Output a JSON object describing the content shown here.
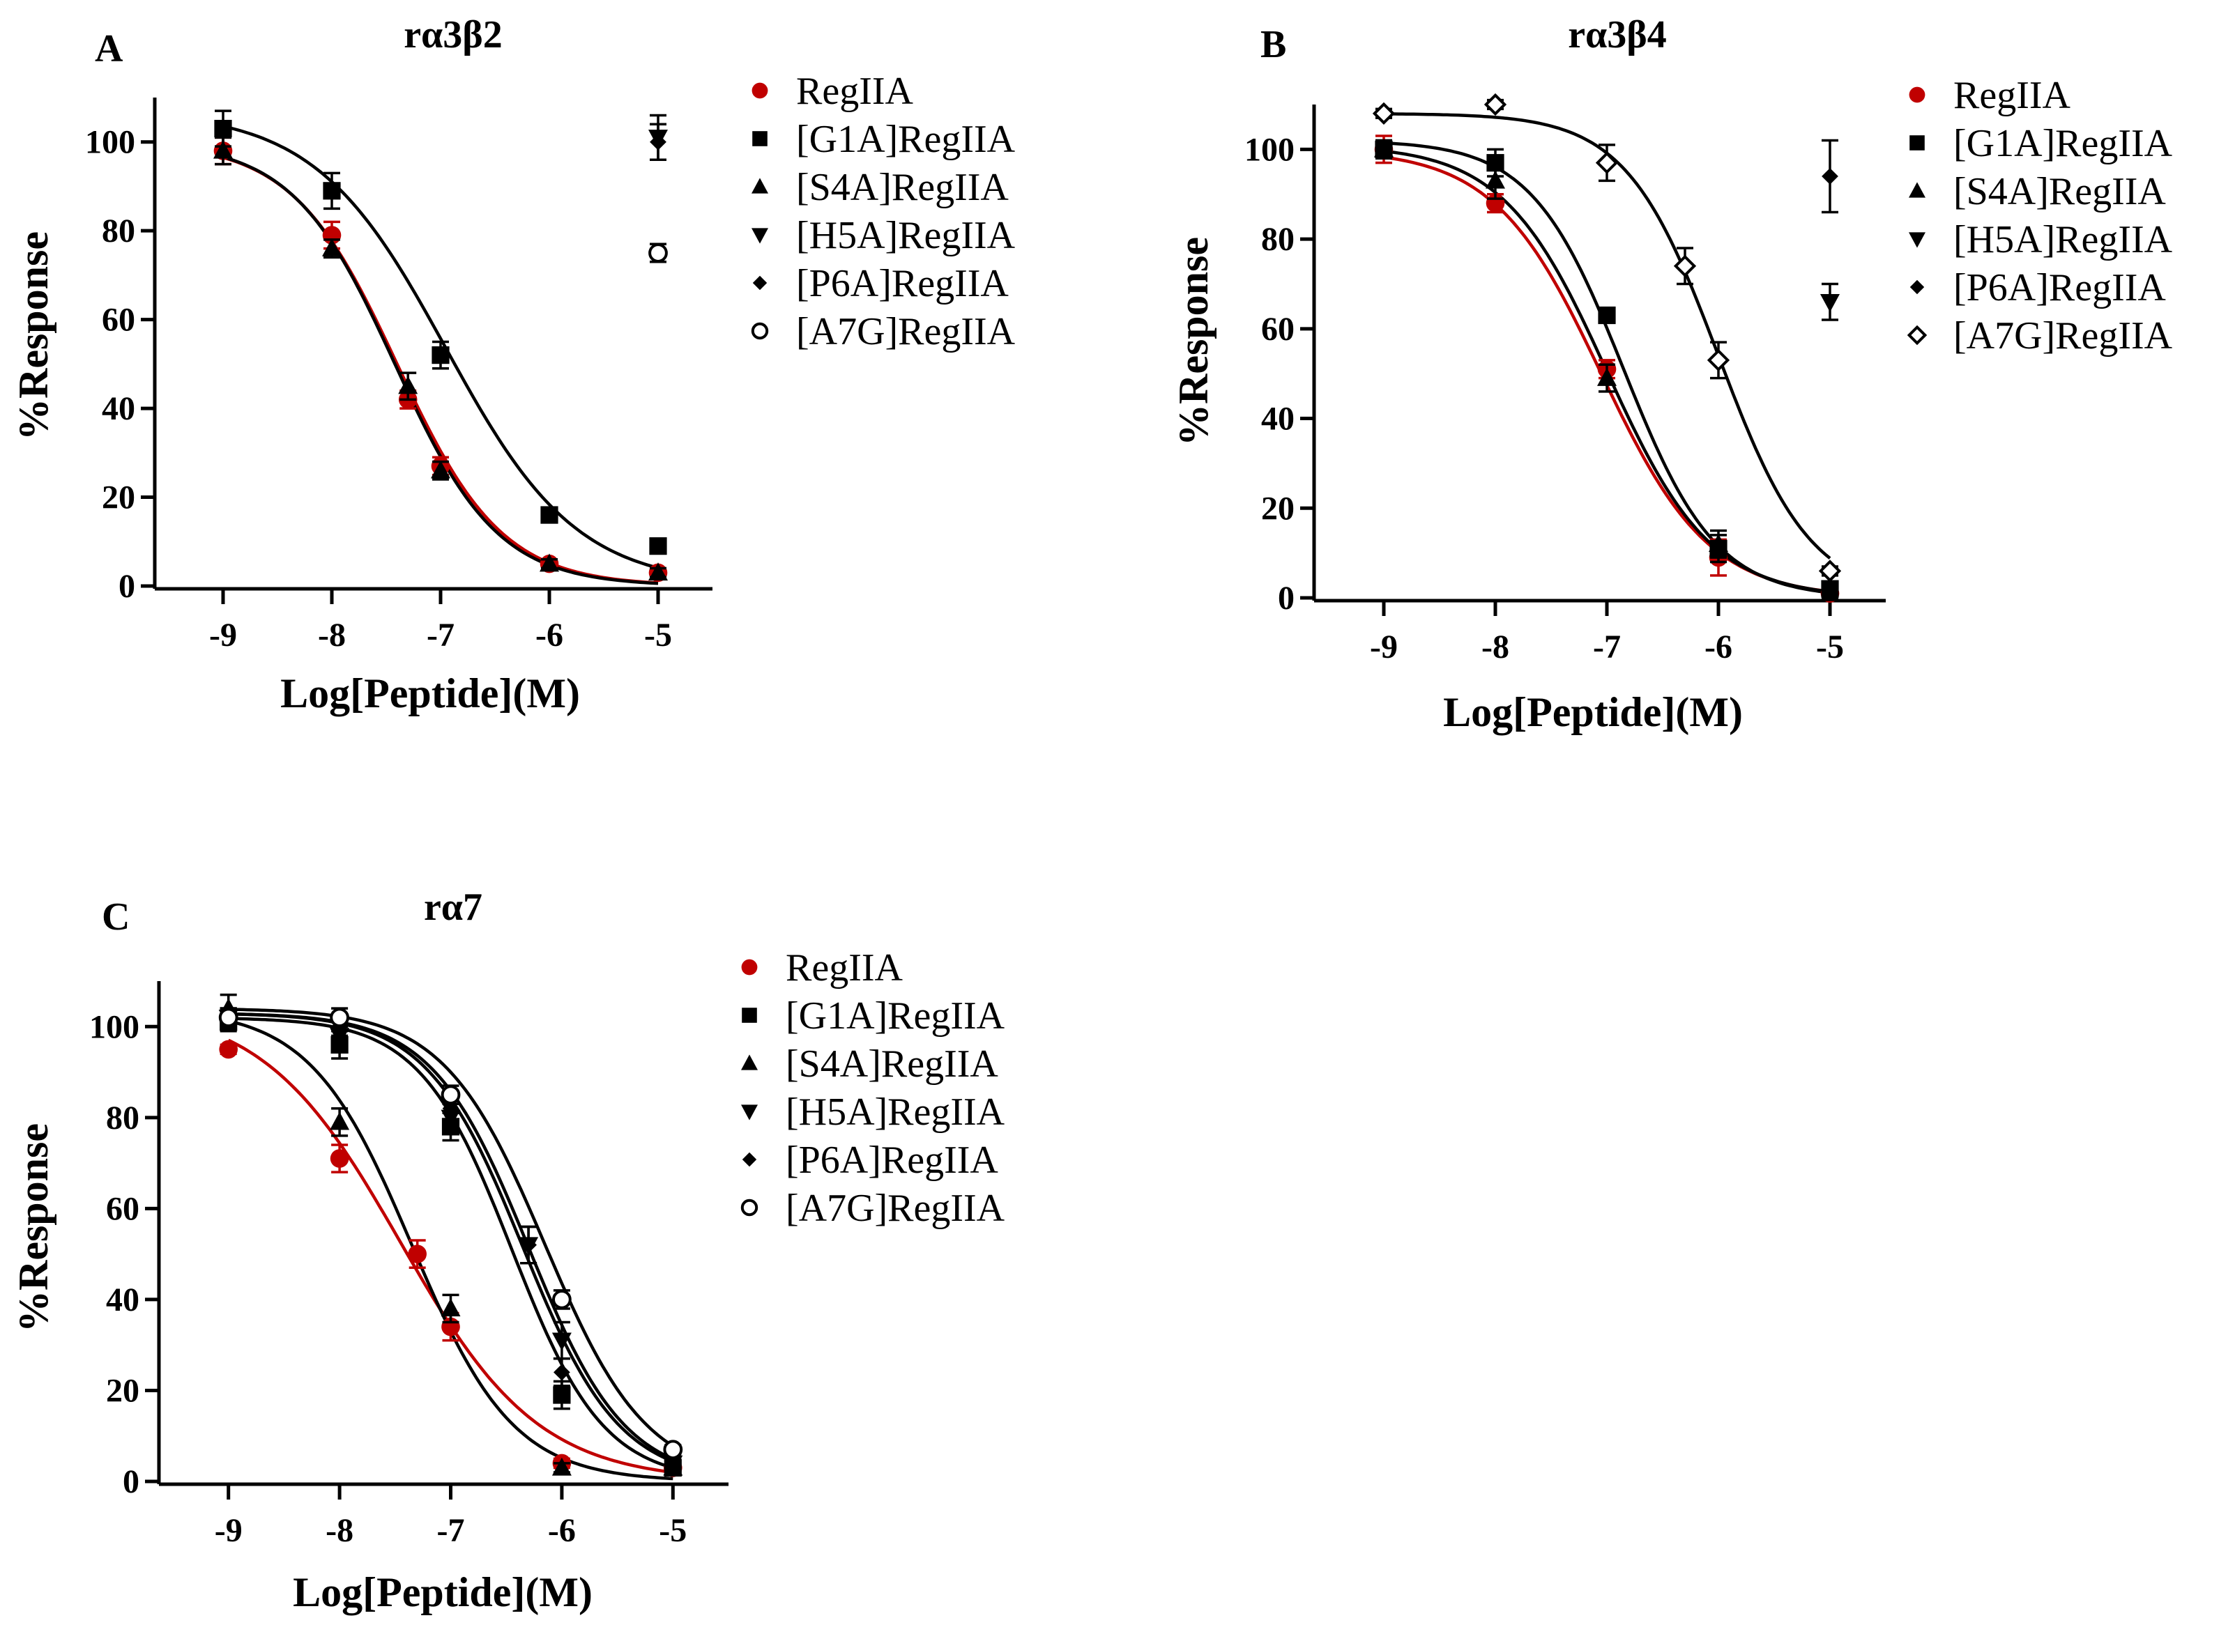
{
  "figure": {
    "colors": {
      "red": "#c00000",
      "black": "#000000"
    }
  },
  "chart_data": [
    {
      "panel": "A",
      "type": "scatter",
      "title": "rα3β2",
      "xlabel": "Log[Peptide](M)",
      "ylabel": "%Response",
      "xlim": [
        -9.5,
        -4.5
      ],
      "ylim": [
        0,
        110
      ],
      "xticks": [
        -9,
        -8,
        -7,
        -6,
        -5
      ],
      "yticks": [
        0,
        20,
        40,
        60,
        80,
        100
      ],
      "legend_position": "right",
      "series": [
        {
          "name": "RegIIA",
          "marker": "circle-filled",
          "color": "#c00000",
          "x": [
            -9,
            -8,
            -7.3,
            -7,
            -6,
            -5
          ],
          "y": [
            98,
            79,
            42,
            27,
            5,
            3
          ],
          "err": [
            3,
            3,
            2,
            2,
            1,
            1
          ],
          "fit": {
            "top": 100,
            "bottom": 0,
            "logIC50": -7.4,
            "hill": 0.9
          }
        },
        {
          "name": "[G1A]RegIIA",
          "marker": "square-filled",
          "color": "#000000",
          "x": [
            -9,
            -8,
            -7,
            -6,
            -5
          ],
          "y": [
            103,
            89,
            52,
            16,
            9
          ],
          "err": [
            4,
            4,
            3,
            1,
            1
          ],
          "fit": {
            "top": 107,
            "bottom": 0,
            "logIC50": -6.95,
            "hill": 0.72
          }
        },
        {
          "name": "[S4A]RegIIA",
          "marker": "triangle-up-filled",
          "color": "#000000",
          "x": [
            -9,
            -8,
            -7.3,
            -7,
            -6,
            -5
          ],
          "y": [
            98,
            76,
            45,
            26,
            5,
            3
          ],
          "err": [
            3,
            2,
            3,
            2,
            1,
            1
          ],
          "fit": {
            "top": 100,
            "bottom": 0,
            "logIC50": -7.42,
            "hill": 0.92
          }
        },
        {
          "name": "[H5A]RegIIA",
          "marker": "triangle-down-filled",
          "color": "#000000",
          "x": [
            -5
          ],
          "y": [
            101
          ],
          "err": [
            5
          ]
        },
        {
          "name": "[P6A]RegIIA",
          "marker": "diamond-filled",
          "color": "#000000",
          "x": [
            -5
          ],
          "y": [
            100
          ],
          "err": [
            4
          ]
        },
        {
          "name": "[A7G]RegIIA",
          "marker": "circle-open",
          "color": "#000000",
          "x": [
            -5
          ],
          "y": [
            75
          ],
          "err": [
            2
          ]
        }
      ]
    },
    {
      "panel": "B",
      "type": "scatter",
      "title": "rα3β4",
      "xlabel": "Log[Peptide](M)",
      "ylabel": "%Response",
      "xlim": [
        -9.5,
        -4.5
      ],
      "ylim": [
        0,
        110
      ],
      "xticks": [
        -9,
        -8,
        -7,
        -6,
        -5
      ],
      "yticks": [
        0,
        20,
        40,
        60,
        80,
        100
      ],
      "legend_position": "right",
      "series": [
        {
          "name": "RegIIA",
          "marker": "circle-filled",
          "color": "#c00000",
          "x": [
            -9,
            -8,
            -7,
            -6,
            -5
          ],
          "y": [
            100,
            88,
            51,
            9,
            1
          ],
          "err": [
            3,
            2,
            2,
            4,
            1
          ],
          "fit": {
            "top": 100,
            "bottom": 0,
            "logIC50": -7.05,
            "hill": 0.9
          }
        },
        {
          "name": "[G1A]RegIIA",
          "marker": "square-filled",
          "color": "#000000",
          "x": [
            -9,
            -8,
            -7,
            -6,
            -5
          ],
          "y": [
            100,
            97,
            63,
            11,
            2
          ],
          "err": [
            2,
            3,
            1,
            3,
            1
          ],
          "fit": {
            "top": 102,
            "bottom": 0,
            "logIC50": -6.85,
            "hill": 1.05
          }
        },
        {
          "name": "[S4A]RegIIA",
          "marker": "triangle-up-filled",
          "color": "#000000",
          "x": [
            -9,
            -8,
            -7,
            -6,
            -5
          ],
          "y": [
            100,
            93,
            49,
            12,
            1
          ],
          "err": [
            2,
            4,
            3,
            3,
            1
          ],
          "fit": {
            "top": 101,
            "bottom": 0,
            "logIC50": -7.0,
            "hill": 0.93
          }
        },
        {
          "name": "[H5A]RegIIA",
          "marker": "triangle-down-filled",
          "color": "#000000",
          "x": [
            -5
          ],
          "y": [
            66
          ],
          "err": [
            4
          ]
        },
        {
          "name": "[P6A]RegIIA",
          "marker": "diamond-filled",
          "color": "#000000",
          "x": [
            -5
          ],
          "y": [
            94
          ],
          "err": [
            8
          ]
        },
        {
          "name": "[A7G]RegIIA",
          "marker": "diamond-open",
          "color": "#000000",
          "x": [
            -9,
            -8,
            -7,
            -6.3,
            -6,
            -5
          ],
          "y": [
            108,
            110,
            97,
            74,
            53,
            6
          ],
          "err": [
            1,
            1,
            4,
            4,
            4,
            1
          ],
          "fit": {
            "top": 108,
            "bottom": 0,
            "logIC50": -6.0,
            "hill": 1.05
          }
        }
      ]
    },
    {
      "panel": "C",
      "type": "scatter",
      "title": "rα7",
      "xlabel": "Log[Peptide](M)",
      "ylabel": "%Response",
      "xlim": [
        -9.5,
        -4.5
      ],
      "ylim": [
        0,
        110
      ],
      "xticks": [
        -9,
        -8,
        -7,
        -6,
        -5
      ],
      "yticks": [
        0,
        20,
        40,
        60,
        80,
        100
      ],
      "legend_position": "right",
      "series": [
        {
          "name": "RegIIA",
          "marker": "circle-filled",
          "color": "#c00000",
          "x": [
            -9,
            -8,
            -7.3,
            -7,
            -6,
            -5
          ],
          "y": [
            95,
            71,
            50,
            34,
            4,
            3
          ],
          "err": [
            1,
            3,
            3,
            3,
            1,
            1
          ],
          "fit": {
            "top": 105,
            "bottom": 0,
            "logIC50": -7.45,
            "hill": 0.7
          }
        },
        {
          "name": "[G1A]RegIIA",
          "marker": "square-filled",
          "color": "#000000",
          "x": [
            -9,
            -8,
            -7,
            -6,
            -5
          ],
          "y": [
            101,
            96,
            78,
            19,
            3
          ],
          "err": [
            2,
            3,
            3,
            3,
            1
          ],
          "fit": {
            "top": 102,
            "bottom": 0,
            "logIC50": -6.45,
            "hill": 1.05
          }
        },
        {
          "name": "[S4A]RegIIA",
          "marker": "triangle-up-filled",
          "color": "#000000",
          "x": [
            -9,
            -8,
            -7,
            -6,
            -5
          ],
          "y": [
            104,
            79,
            38,
            3,
            3
          ],
          "err": [
            3,
            3,
            3,
            1,
            1
          ],
          "fit": {
            "top": 104,
            "bottom": 0,
            "logIC50": -7.35,
            "hill": 0.95
          }
        },
        {
          "name": "[H5A]RegIIA",
          "marker": "triangle-down-filled",
          "color": "#000000",
          "x": [
            -9,
            -8,
            -7,
            -6.3,
            -6,
            -5
          ],
          "y": [
            102,
            98,
            80,
            52,
            31,
            4
          ],
          "err": [
            2,
            2,
            3,
            4,
            4,
            1
          ],
          "fit": {
            "top": 103,
            "bottom": 0,
            "logIC50": -6.3,
            "hill": 1.0
          }
        },
        {
          "name": "[P6A]RegIIA",
          "marker": "diamond-filled",
          "color": "#000000",
          "x": [
            -9,
            -8,
            -7,
            -6.3,
            -6,
            -5
          ],
          "y": [
            102,
            100,
            82,
            52,
            24,
            3
          ],
          "err": [
            2,
            2,
            3,
            4,
            3,
            1
          ],
          "fit": {
            "top": 103,
            "bottom": 0,
            "logIC50": -6.35,
            "hill": 1.0
          }
        },
        {
          "name": "[A7G]RegIIA",
          "marker": "circle-open",
          "color": "#000000",
          "x": [
            -9,
            -8,
            -7,
            -6,
            -5
          ],
          "y": [
            102,
            102,
            85,
            40,
            7
          ],
          "err": [
            2,
            2,
            2,
            2,
            1
          ],
          "fit": {
            "top": 104,
            "bottom": 0,
            "logIC50": -6.15,
            "hill": 0.95
          }
        }
      ]
    }
  ]
}
